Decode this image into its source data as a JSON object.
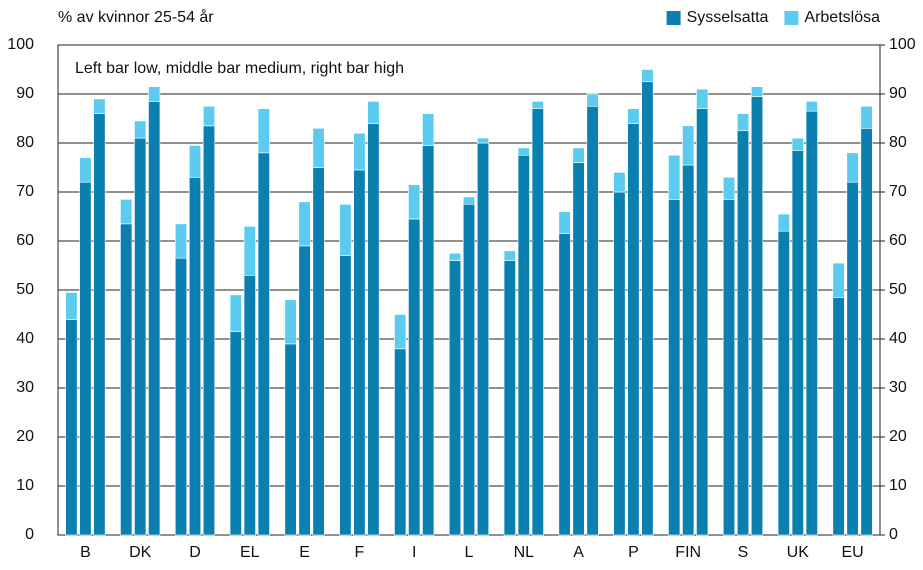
{
  "chart_data": {
    "type": "grouped-stacked-bar",
    "ylabel": "% av kvinnor 25-54 år",
    "annotation": "Left bar low, middle bar medium, right bar high",
    "categories": [
      "B",
      "DK",
      "D",
      "EL",
      "E",
      "F",
      "I",
      "L",
      "NL",
      "A",
      "P",
      "FIN",
      "S",
      "UK",
      "EU"
    ],
    "series": [
      {
        "name": "Sysselsatta",
        "color": "#0a7fb0",
        "values": [
          [
            44,
            72,
            86
          ],
          [
            63.5,
            81,
            88.5
          ],
          [
            56.5,
            73,
            83.5
          ],
          [
            41.5,
            53,
            78
          ],
          [
            39,
            59,
            75
          ],
          [
            57,
            74.5,
            84
          ],
          [
            38,
            64.5,
            79.5
          ],
          [
            56,
            67.5,
            80
          ],
          [
            56,
            77.5,
            87
          ],
          [
            61.5,
            76,
            87.5
          ],
          [
            70,
            84,
            92.5
          ],
          [
            68.5,
            75.5,
            87
          ],
          [
            68.5,
            82.5,
            89.5
          ],
          [
            62,
            78.5,
            86.5
          ],
          [
            48.5,
            72,
            83
          ]
        ]
      },
      {
        "name": "Arbetslösa",
        "color": "#5bcbf0",
        "values": [
          [
            5.5,
            5,
            3
          ],
          [
            5,
            3.5,
            3
          ],
          [
            7,
            6.5,
            4
          ],
          [
            7.5,
            10,
            9
          ],
          [
            9,
            9,
            8
          ],
          [
            10.5,
            7.5,
            4.5
          ],
          [
            7,
            7,
            6.5
          ],
          [
            1.5,
            1.5,
            1
          ],
          [
            2,
            1.5,
            1.5
          ],
          [
            4.5,
            3,
            2.5
          ],
          [
            4,
            3,
            2.5
          ],
          [
            9,
            8,
            4
          ],
          [
            4.5,
            3.5,
            2
          ],
          [
            3.5,
            2.5,
            2
          ],
          [
            7,
            6,
            4.5
          ]
        ]
      }
    ],
    "ylim": [
      0,
      100
    ],
    "yticks": [
      0,
      10,
      20,
      30,
      40,
      50,
      60,
      70,
      80,
      90,
      100
    ],
    "y2lim": [
      0,
      100
    ],
    "y2ticks": [
      0,
      10,
      20,
      30,
      40,
      50,
      60,
      70,
      80,
      90,
      100
    ],
    "grid": true,
    "legend": "top-right"
  }
}
